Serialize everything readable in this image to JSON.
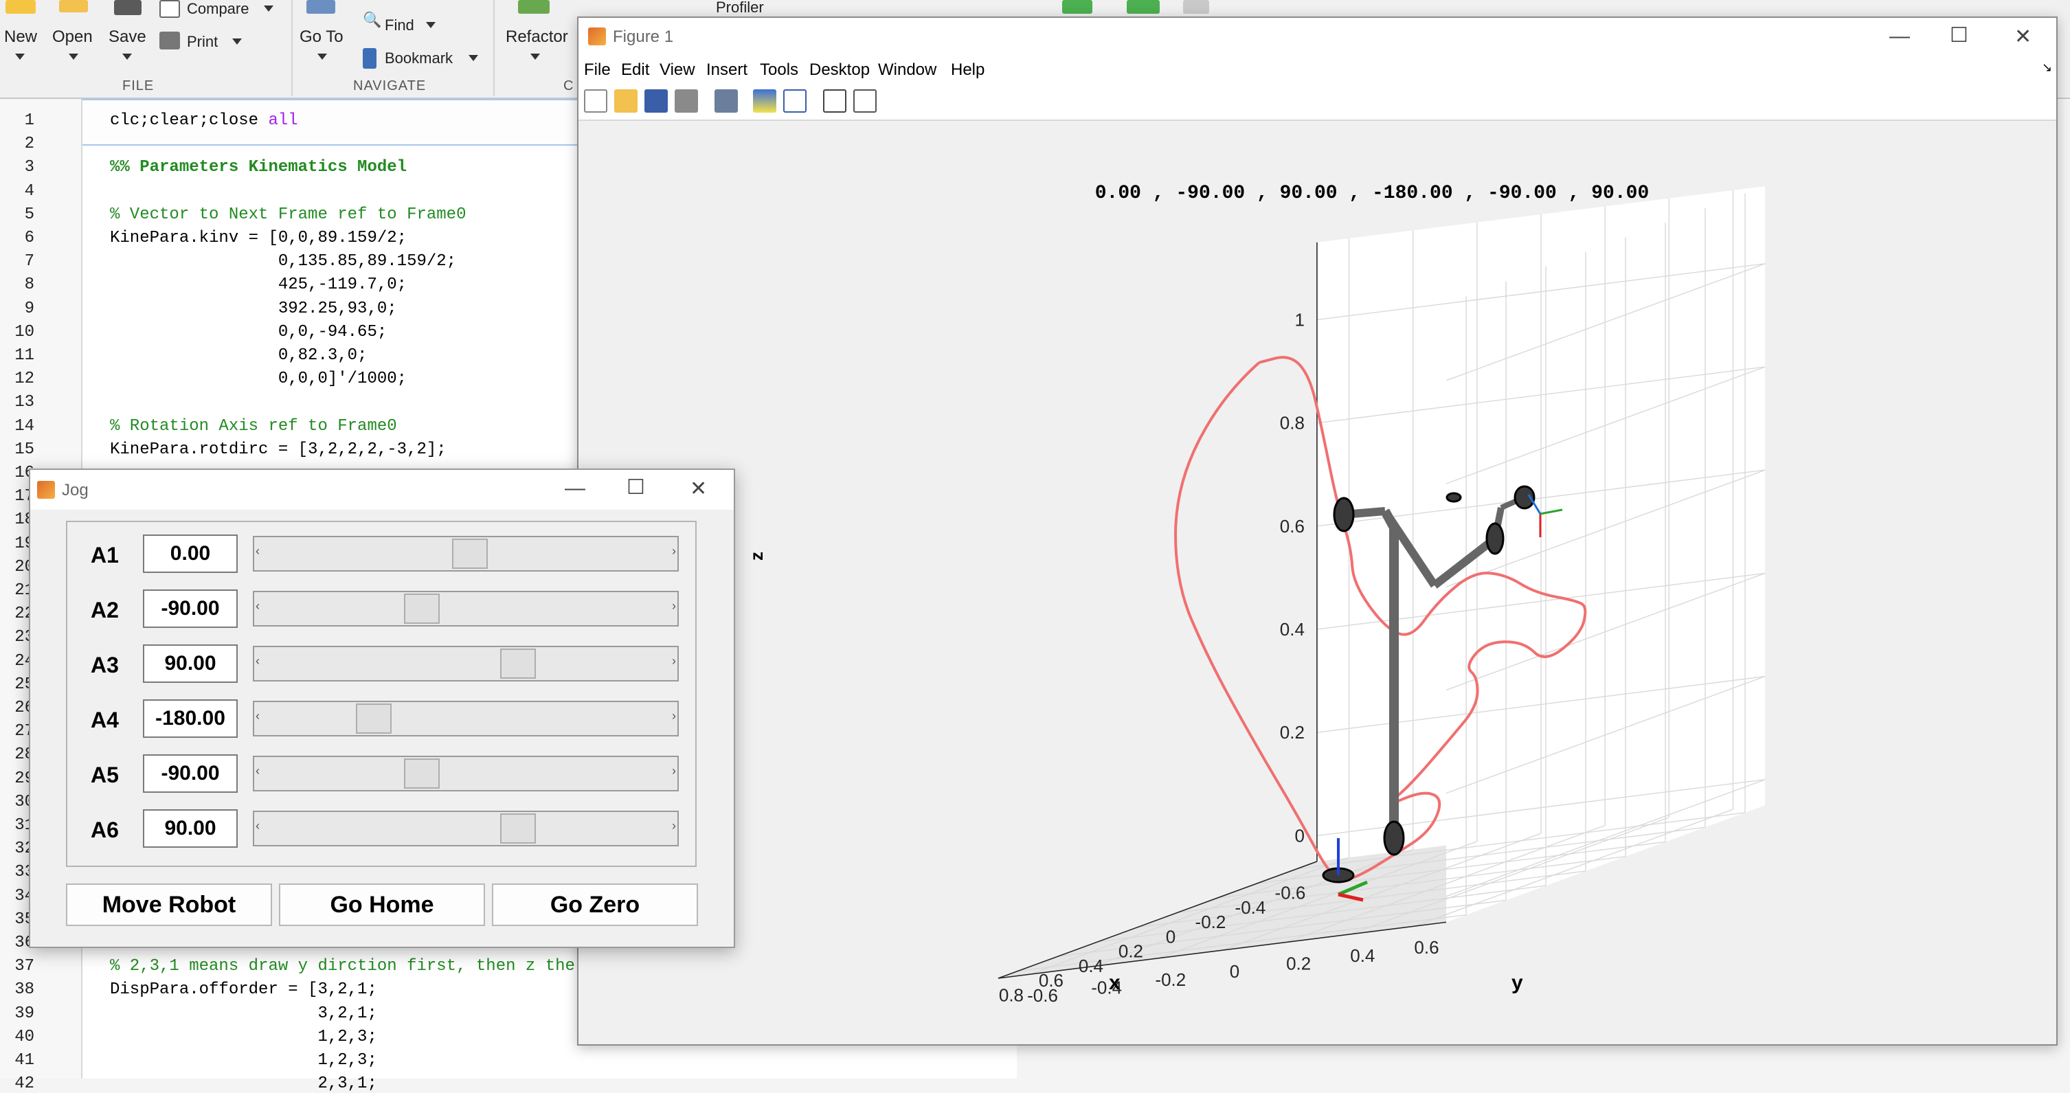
{
  "ribbon": {
    "new_label": "New",
    "open_label": "Open",
    "save_label": "Save",
    "compare_label": "Compare",
    "print_label": "Print",
    "file_group": "FILE",
    "goto_label": "Go To",
    "find_label": "Find",
    "bookmark_label": "Bookmark",
    "navigate_group": "NAVIGATE",
    "refactor_label": "Refactor",
    "profiler_label": "Profiler",
    "code_group_partial": "C"
  },
  "editor": {
    "lines": [
      {
        "n": "1",
        "t": "clc;clear;close "
      },
      {
        "n": "2",
        "t": ""
      },
      {
        "n": "3",
        "t": "%% Parameters Kinematics Model"
      },
      {
        "n": "4",
        "t": ""
      },
      {
        "n": "5",
        "t": "% Vector to Next Frame ref to Frame0"
      },
      {
        "n": "6",
        "t": "KinePara.kinv = [0,0,89.159/2;"
      },
      {
        "n": "7",
        "t": "                 0,135.85,89.159/2;"
      },
      {
        "n": "8",
        "t": "                 425,-119.7,0;"
      },
      {
        "n": "9",
        "t": "                 392.25,93,0;"
      },
      {
        "n": "10",
        "t": "                 0,0,-94.65;"
      },
      {
        "n": "11",
        "t": "                 0,82.3,0;"
      },
      {
        "n": "12",
        "t": "                 0,0,0]'/1000;"
      },
      {
        "n": "13",
        "t": ""
      },
      {
        "n": "14",
        "t": "% Rotation Axis ref to Frame0"
      },
      {
        "n": "15",
        "t": "KinePara.rotdirc = [3,2,2,2,-3,2];"
      },
      {
        "n": "16",
        "t": ""
      },
      {
        "n": "17",
        "t": ""
      },
      {
        "n": "18",
        "t": ""
      },
      {
        "n": "19",
        "t": ""
      },
      {
        "n": "20",
        "t": ""
      },
      {
        "n": "21",
        "t": ""
      },
      {
        "n": "22",
        "t": ""
      },
      {
        "n": "23",
        "t": ""
      },
      {
        "n": "24",
        "t": ""
      },
      {
        "n": "25",
        "t": ""
      },
      {
        "n": "26",
        "t": ""
      },
      {
        "n": "27",
        "t": ""
      },
      {
        "n": "28",
        "t": ""
      },
      {
        "n": "29",
        "t": ""
      },
      {
        "n": "30",
        "t": ""
      },
      {
        "n": "31",
        "t": ""
      },
      {
        "n": "32",
        "t": ""
      },
      {
        "n": "33",
        "t": ""
      },
      {
        "n": "34",
        "t": ""
      },
      {
        "n": "35",
        "t": ""
      },
      {
        "n": "36",
        "t": ""
      },
      {
        "n": "37",
        "t": "% 2,3,1 means draw y dirction first, then z the"
      },
      {
        "n": "38",
        "t": "DispPara.offorder = [3,2,1;"
      },
      {
        "n": "39",
        "t": "                     3,2,1;"
      },
      {
        "n": "40",
        "t": "                     1,2,3;"
      },
      {
        "n": "41",
        "t": "                     1,2,3;"
      },
      {
        "n": "42",
        "t": "                     2,3,1;"
      }
    ],
    "line1_keyword": "all"
  },
  "figure": {
    "title": "Figure 1",
    "menu": [
      "File",
      "Edit",
      "View",
      "Insert",
      "Tools",
      "Desktop",
      "Window",
      "Help"
    ],
    "plot": {
      "title": "0.00 , -90.00 , 90.00 , -180.00 , -90.00 , 90.00",
      "xlabel": "x",
      "ylabel": "y",
      "zlabel": "z",
      "z_ticks": [
        "0",
        "0.2",
        "0.4",
        "0.6",
        "0.8",
        "1"
      ],
      "x_ticks": [
        "-0.6",
        "-0.4",
        "-0.2",
        "0",
        "0.2",
        "0.4",
        "0.6",
        "0.8"
      ],
      "y_ticks": [
        "-0.6",
        "-0.4",
        "-0.2",
        "0",
        "0.2",
        "0.4",
        "0.6"
      ],
      "trajectory_color": "#f07070",
      "link_color": "#666666"
    }
  },
  "jog": {
    "title": "Jog",
    "joints": [
      {
        "label": "A1",
        "value": "0.00",
        "pos": 0.5
      },
      {
        "label": "A2",
        "value": "-90.00",
        "pos": 0.375
      },
      {
        "label": "A3",
        "value": "90.00",
        "pos": 0.625
      },
      {
        "label": "A4",
        "value": "-180.00",
        "pos": 0.25
      },
      {
        "label": "A5",
        "value": "-90.00",
        "pos": 0.375
      },
      {
        "label": "A6",
        "value": "90.00",
        "pos": 0.625
      }
    ],
    "buttons": {
      "move": "Move Robot",
      "home": "Go Home",
      "zero": "Go Zero"
    }
  }
}
